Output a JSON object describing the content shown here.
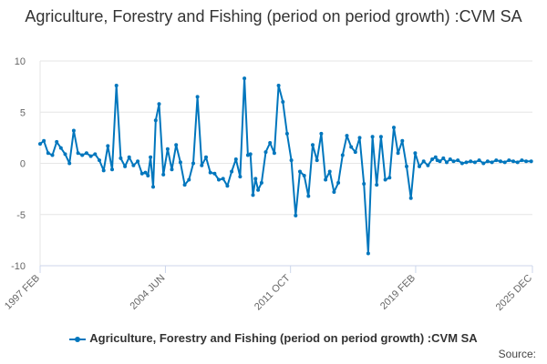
{
  "page": {
    "title": "Agriculture, Forestry and Fishing (period on period growth) :CVM SA",
    "source_label": "Source:"
  },
  "colors": {
    "series": "#0076bd",
    "grid": "#e6e6e6",
    "axis": "#ccd6eb",
    "text": "#333333"
  },
  "chart_data": {
    "type": "line",
    "title": "Agriculture, Forestry and Fishing (period on period growth) :CVM SA",
    "xlabel": "",
    "ylabel": "",
    "ylim": [
      -10,
      10
    ],
    "yticks": [
      10,
      5,
      0,
      -5,
      -10
    ],
    "xlim": [
      "1997 FEB",
      "2025 DEC"
    ],
    "xticks": [
      "1997 FEB",
      "2004 JUN",
      "2011 OCT",
      "2019 FEB",
      "2025 DEC"
    ],
    "grid": true,
    "legend_position": "bottom",
    "series": [
      {
        "name": "Agriculture, Forestry and Fishing (period on period growth) :CVM SA",
        "x": [
          1997.08,
          1997.3,
          1997.55,
          1997.8,
          1998.05,
          1998.3,
          1998.55,
          1998.8,
          1999.05,
          1999.3,
          1999.55,
          1999.8,
          2000.05,
          2000.3,
          2000.55,
          2000.8,
          2001.05,
          2001.3,
          2001.55,
          2001.8,
          2002.05,
          2002.3,
          2002.55,
          2002.8,
          2003.05,
          2003.25,
          2003.4,
          2003.55,
          2003.7,
          2003.85,
          2004.05,
          2004.3,
          2004.55,
          2004.8,
          2005.05,
          2005.3,
          2005.55,
          2005.8,
          2006.05,
          2006.3,
          2006.55,
          2006.8,
          2007.05,
          2007.3,
          2007.55,
          2007.8,
          2008.05,
          2008.3,
          2008.55,
          2008.8,
          2009.05,
          2009.25,
          2009.4,
          2009.55,
          2009.7,
          2009.85,
          2010.05,
          2010.3,
          2010.55,
          2010.8,
          2011.05,
          2011.3,
          2011.55,
          2011.8,
          2012.05,
          2012.3,
          2012.55,
          2012.8,
          2013.05,
          2013.3,
          2013.55,
          2013.8,
          2014.05,
          2014.3,
          2014.55,
          2014.8,
          2015.05,
          2015.3,
          2015.55,
          2015.8,
          2016.05,
          2016.3,
          2016.55,
          2016.8,
          2017.05,
          2017.3,
          2017.55,
          2017.8,
          2018.05,
          2018.3,
          2018.55,
          2018.8,
          2019.05,
          2019.3,
          2019.55,
          2019.8,
          2020.05,
          2020.25,
          2020.35,
          2020.5,
          2020.7,
          2020.9,
          2021.1,
          2021.3,
          2021.55,
          2021.8,
          2022.05,
          2022.3,
          2022.55,
          2022.8,
          2023.05,
          2023.3,
          2023.55,
          2023.8,
          2024.05,
          2024.3,
          2024.55,
          2024.8,
          2025.05,
          2025.3,
          2025.55,
          2025.85
        ],
        "y": [
          1.9,
          2.2,
          1.0,
          0.8,
          2.1,
          1.5,
          0.9,
          0.0,
          3.2,
          1.0,
          0.8,
          1.0,
          0.7,
          0.9,
          0.3,
          -0.7,
          1.7,
          -0.6,
          7.6,
          0.5,
          -0.3,
          0.6,
          -0.2,
          0.2,
          -1.0,
          -0.9,
          -1.2,
          0.6,
          -2.3,
          4.2,
          5.8,
          -1.1,
          1.4,
          -0.6,
          1.8,
          0.1,
          -2.1,
          -1.6,
          0.0,
          6.5,
          -0.2,
          0.6,
          -0.9,
          -1.0,
          -1.6,
          -1.5,
          -2.2,
          -0.8,
          0.4,
          -1.3,
          8.3,
          0.8,
          0.9,
          -3.1,
          -1.5,
          -2.6,
          -1.9,
          1.1,
          2.0,
          1.0,
          7.6,
          6.0,
          2.9,
          0.3,
          -5.1,
          -0.8,
          -1.2,
          -3.2,
          1.8,
          0.3,
          2.9,
          -1.6,
          -0.8,
          -2.8,
          -1.9,
          0.8,
          2.7,
          1.6,
          1.1,
          2.5,
          -2.0,
          -8.8,
          2.6,
          -2.1,
          2.6,
          -1.6,
          -1.4,
          3.5,
          1.0,
          2.2,
          -0.3,
          -3.4,
          1.0,
          -0.3,
          0.2,
          -0.2,
          0.4,
          0.6,
          0.3,
          0.2,
          0.5,
          0.1,
          0.4,
          0.2,
          0.3,
          0.0,
          0.1,
          0.2,
          0.1,
          0.3,
          0.0,
          0.2,
          0.1,
          0.3,
          0.2,
          0.1,
          0.3,
          0.2,
          0.1,
          0.3,
          0.2,
          0.2
        ]
      }
    ]
  }
}
